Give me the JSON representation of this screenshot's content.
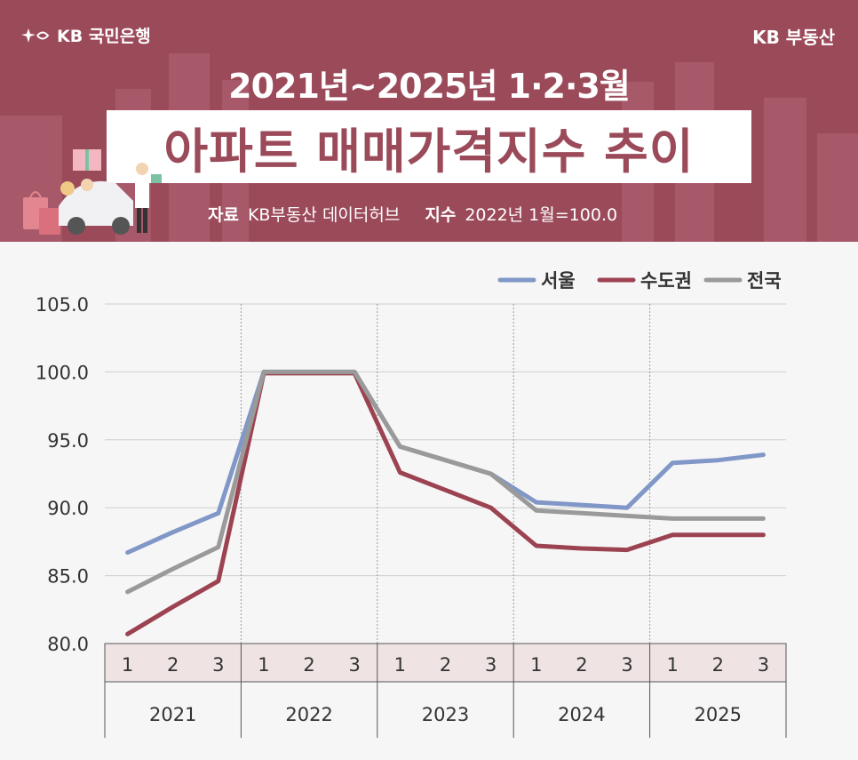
{
  "header": {
    "bank_logo": "KB 국민은행",
    "brand": "KB 부동산",
    "subtitle": "2021년~2025년 1·2·3월",
    "title": "아파트 매매가격지수 추이",
    "source_label": "자료",
    "source_value": "KB부동산 데이터허브",
    "index_label": "지수",
    "index_value": "2022년 1월=100.0"
  },
  "colors": {
    "banner": "#9b4a5a",
    "seoul": "#8097c7",
    "capital": "#9c4352",
    "national": "#9a9a9a"
  },
  "chart_data": {
    "type": "line",
    "title": "아파트 매매가격지수 추이",
    "x": [
      "2021-1",
      "2021-2",
      "2021-3",
      "2022-1",
      "2022-2",
      "2022-3",
      "2023-1",
      "2023-2",
      "2023-3",
      "2024-1",
      "2024-2",
      "2024-3",
      "2025-1",
      "2025-2",
      "2025-3"
    ],
    "month_labels": [
      "1",
      "2",
      "3",
      "1",
      "2",
      "3",
      "1",
      "2",
      "3",
      "1",
      "2",
      "3",
      "1",
      "2",
      "3"
    ],
    "year_labels": [
      "2021",
      "2022",
      "2023",
      "2024",
      "2025"
    ],
    "ylim": [
      80,
      105
    ],
    "yticks": [
      "105.0",
      "100.0",
      "95.0",
      "90.0",
      "85.0",
      "80.0"
    ],
    "grid": true,
    "legend_position": "top-right",
    "series": [
      {
        "name": "서울",
        "color": "#8097c7",
        "values": [
          86.7,
          88.2,
          89.6,
          100.0,
          100.0,
          100.0,
          94.5,
          93.5,
          92.5,
          90.4,
          90.2,
          90.0,
          93.3,
          93.5,
          93.9
        ]
      },
      {
        "name": "수도권",
        "color": "#9c4352",
        "values": [
          80.7,
          82.7,
          84.6,
          99.9,
          99.9,
          99.9,
          92.6,
          91.3,
          90.0,
          87.2,
          87.0,
          86.9,
          88.0,
          88.0,
          88.0
        ]
      },
      {
        "name": "전국",
        "color": "#9a9a9a",
        "values": [
          83.8,
          85.5,
          87.1,
          100.0,
          100.0,
          100.0,
          94.5,
          93.5,
          92.5,
          89.8,
          89.6,
          89.4,
          89.2,
          89.2,
          89.2
        ]
      }
    ]
  }
}
